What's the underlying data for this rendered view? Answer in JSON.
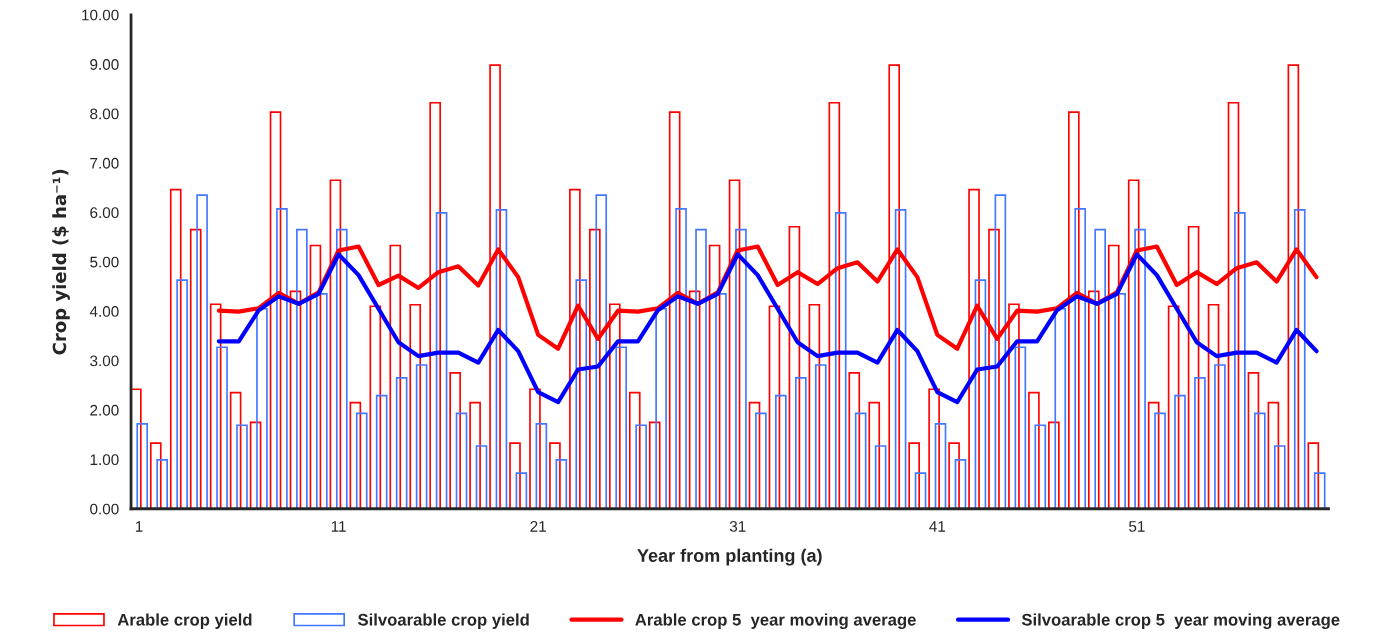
{
  "chart_data": {
    "type": "bar",
    "xlabel": "Year from planting (a)",
    "ylabel": "Crop yield ($ ha⁻¹)",
    "x": [
      1,
      2,
      3,
      4,
      5,
      6,
      7,
      8,
      9,
      10,
      11,
      12,
      13,
      14,
      15,
      16,
      17,
      18,
      19,
      20,
      21,
      22,
      23,
      24,
      25,
      26,
      27,
      28,
      29,
      30,
      31,
      32,
      33,
      34,
      35,
      36,
      37,
      38,
      39,
      40,
      41,
      42,
      43,
      44,
      45,
      46,
      47,
      48,
      49,
      50,
      51,
      52,
      53,
      54,
      55,
      56,
      57,
      58,
      59,
      60
    ],
    "xlim": [
      0.6,
      60.6
    ],
    "xticks": [
      1,
      11,
      21,
      31,
      41,
      51
    ],
    "ylim": [
      0,
      10
    ],
    "yticks": [
      {
        "value": 0,
        "label": "0.00"
      },
      {
        "value": 1,
        "label": "1.00"
      },
      {
        "value": 2,
        "label": "2.00"
      },
      {
        "value": 3,
        "label": "3.00"
      },
      {
        "value": 4,
        "label": "4.00"
      },
      {
        "value": 5,
        "label": "5.00"
      },
      {
        "value": 6,
        "label": "6.00"
      },
      {
        "value": 7,
        "label": "7.00"
      },
      {
        "value": 8,
        "label": "8.00"
      },
      {
        "value": 9,
        "label": "9.00"
      },
      {
        "value": 10,
        "label": "10.00"
      }
    ],
    "grid": false,
    "legend": "bottom",
    "series": [
      {
        "name": "Arable crop yield",
        "color": "#ff0000",
        "values": [
          2.42,
          1.33,
          6.46,
          5.65,
          4.14,
          2.35,
          1.75,
          8.03,
          4.4,
          5.33,
          6.65,
          2.15,
          4.1,
          5.33,
          4.13,
          8.22,
          2.75,
          2.15,
          8.98,
          1.33,
          2.42,
          1.33,
          6.46,
          5.65,
          4.14,
          2.35,
          1.75,
          8.03,
          4.4,
          5.33,
          6.65,
          2.15,
          4.1,
          5.71,
          4.13,
          8.22,
          2.75,
          2.15,
          8.98,
          1.33,
          2.42,
          1.33,
          6.46,
          5.65,
          4.14,
          2.35,
          1.75,
          8.03,
          4.4,
          5.33,
          6.65,
          2.15,
          4.1,
          5.71,
          4.13,
          8.22,
          2.75,
          2.15,
          8.98,
          1.33
        ]
      },
      {
        "name": "Silvoarable crop yield",
        "color": "#4477ff",
        "values": [
          1.72,
          0.99,
          4.63,
          6.35,
          3.27,
          1.69,
          4.05,
          6.07,
          5.65,
          4.35,
          5.65,
          1.93,
          2.29,
          2.65,
          2.91,
          5.99,
          1.93,
          1.27,
          6.05,
          0.72,
          1.72,
          0.99,
          4.63,
          6.35,
          3.27,
          1.69,
          4.05,
          6.07,
          5.65,
          4.35,
          5.65,
          1.93,
          2.29,
          2.65,
          2.91,
          5.99,
          1.93,
          1.27,
          6.05,
          0.72,
          1.72,
          0.99,
          4.63,
          6.35,
          3.27,
          1.69,
          4.05,
          6.07,
          5.65,
          4.35,
          5.65,
          1.93,
          2.29,
          2.65,
          2.91,
          5.99,
          1.93,
          1.27,
          6.05,
          0.72
        ]
      },
      {
        "name": "Arable crop 5  year moving average",
        "type": "line",
        "color": "#ff0000",
        "values": [
          null,
          null,
          null,
          null,
          4.01,
          3.99,
          4.06,
          4.37,
          4.15,
          4.38,
          5.23,
          5.31,
          4.53,
          4.72,
          4.47,
          4.79,
          4.91,
          4.52,
          5.25,
          4.69,
          3.52,
          3.24,
          4.11,
          3.44,
          4.01,
          3.99,
          4.06,
          4.37,
          4.15,
          4.38,
          5.23,
          5.31,
          4.53,
          4.79,
          4.55,
          4.87,
          4.99,
          4.6,
          5.25,
          4.69,
          3.52,
          3.24,
          4.11,
          3.44,
          4.01,
          3.99,
          4.06,
          4.37,
          4.15,
          4.38,
          5.23,
          5.31,
          4.53,
          4.79,
          4.55,
          4.87,
          4.99,
          4.6,
          5.25,
          4.69
        ]
      },
      {
        "name": "Silvoarable crop 5  year moving average",
        "type": "line",
        "color": "#0000ff",
        "values": [
          null,
          null,
          null,
          null,
          3.39,
          3.39,
          4.02,
          4.3,
          4.15,
          4.35,
          5.15,
          4.73,
          4.05,
          3.37,
          3.09,
          3.16,
          3.16,
          2.96,
          3.62,
          3.19,
          2.36,
          2.16,
          2.82,
          2.88,
          3.39,
          3.39,
          4.02,
          4.3,
          4.15,
          4.35,
          5.15,
          4.73,
          4.05,
          3.37,
          3.09,
          3.16,
          3.16,
          2.96,
          3.62,
          3.19,
          2.36,
          2.16,
          2.82,
          2.88,
          3.39,
          3.39,
          4.02,
          4.3,
          4.15,
          4.35,
          5.15,
          4.73,
          4.05,
          3.37,
          3.09,
          3.16,
          3.16,
          2.96,
          3.62,
          3.19
        ]
      }
    ]
  }
}
